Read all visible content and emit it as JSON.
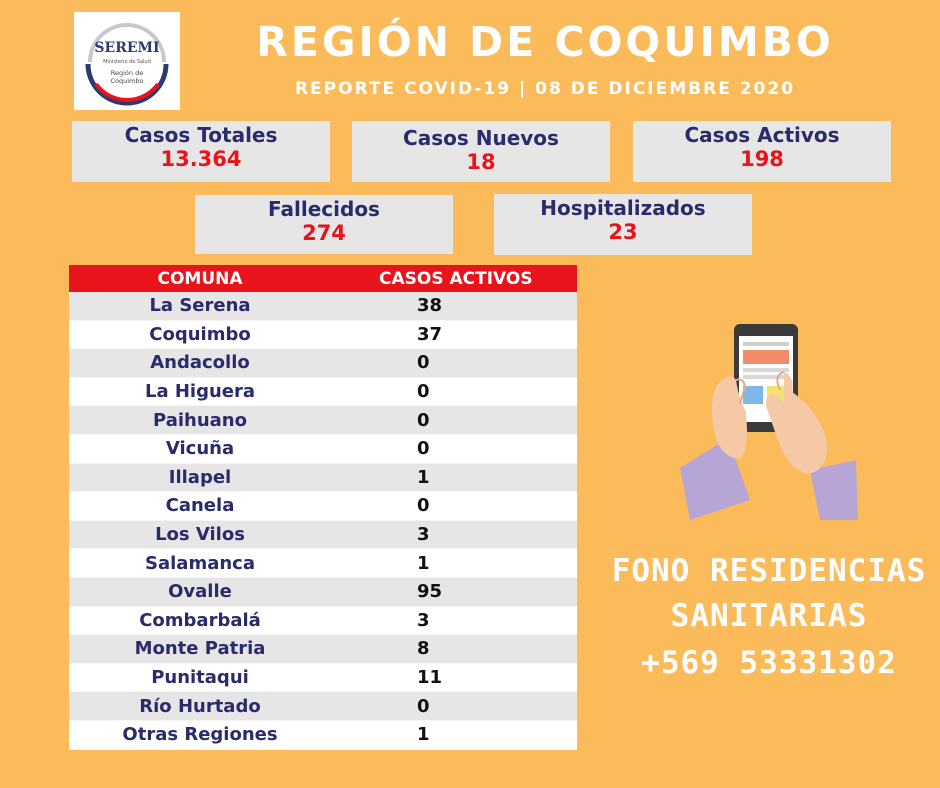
{
  "logo": {
    "name": "SEREMI",
    "ministry": "Ministerio de Salud",
    "region_line1": "Región de",
    "region_line2": "Coquimbo"
  },
  "header": {
    "title": "REGIÓN DE COQUIMBO",
    "subtitle": "REPORTE COVID-19 | 08 DE DICIEMBRE 2020"
  },
  "stats": {
    "casos_totales": {
      "label": "Casos Totales",
      "value": "13.364"
    },
    "casos_nuevos": {
      "label": "Casos Nuevos",
      "value": "18"
    },
    "casos_activos": {
      "label": "Casos Activos",
      "value": "198"
    },
    "fallecidos": {
      "label": "Fallecidos",
      "value": "274"
    },
    "hospitalizados": {
      "label": "Hospitalizados",
      "value": "23"
    }
  },
  "table": {
    "headers": [
      "COMUNA",
      "CASOS ACTIVOS"
    ],
    "rows": [
      [
        "La Serena",
        "38"
      ],
      [
        "Coquimbo",
        "37"
      ],
      [
        "Andacollo",
        "0"
      ],
      [
        "La Higuera",
        "0"
      ],
      [
        "Paihuano",
        "0"
      ],
      [
        "Vicuña",
        "0"
      ],
      [
        "Illapel",
        "1"
      ],
      [
        "Canela",
        "0"
      ],
      [
        "Los Vilos",
        "3"
      ],
      [
        "Salamanca",
        "1"
      ],
      [
        "Ovalle",
        "95"
      ],
      [
        "Combarbalá",
        "3"
      ],
      [
        "Monte Patria",
        "8"
      ],
      [
        "Punitaqui",
        "11"
      ],
      [
        "Río Hurtado",
        "0"
      ],
      [
        "Otras Regiones",
        "1"
      ]
    ]
  },
  "fono": {
    "line1": "FONO RESIDENCIAS",
    "line2": "SANITARIAS",
    "line3": "+569 53331302"
  },
  "colors": {
    "background": "#fbbb5b",
    "header_red": "#e8141b",
    "label_navy": "#2b2a6b",
    "box_gray": "#e6e6e6"
  },
  "icons": {
    "illustration": "hands-holding-smartphone-icon"
  }
}
